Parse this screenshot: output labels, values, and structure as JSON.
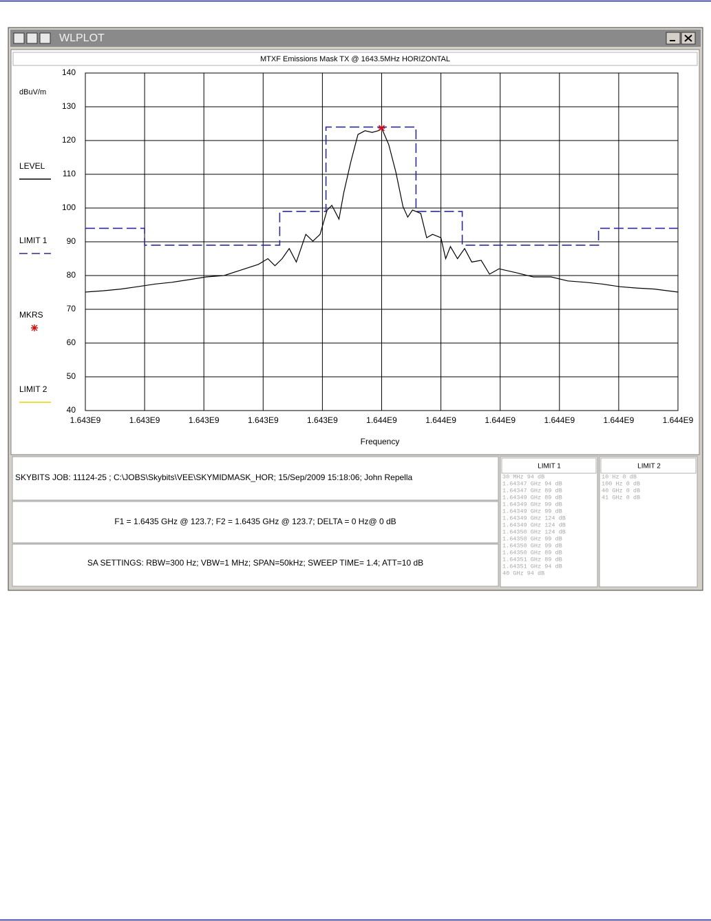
{
  "window": {
    "title": "WLPLOT"
  },
  "chart_data": {
    "type": "line",
    "title": "MTXF Emissions Mask TX @ 1643.5MHz HORIZONTAL",
    "ylabel": "dBuV/m",
    "xlabel": "Frequency",
    "xlim": [
      1643475000,
      1643525000
    ],
    "xticks": [
      {
        "value": 1643475000,
        "label": "1.643E9"
      },
      {
        "value": 1643480000,
        "label": "1.643E9"
      },
      {
        "value": 1643485000,
        "label": "1.643E9"
      },
      {
        "value": 1643490000,
        "label": "1.643E9"
      },
      {
        "value": 1643495000,
        "label": "1.643E9"
      },
      {
        "value": 1643500000,
        "label": "1.644E9"
      },
      {
        "value": 1643505000,
        "label": "1.644E9"
      },
      {
        "value": 1643510000,
        "label": "1.644E9"
      },
      {
        "value": 1643515000,
        "label": "1.644E9"
      },
      {
        "value": 1643520000,
        "label": "1.644E9"
      },
      {
        "value": 1643525000,
        "label": "1.644E9"
      }
    ],
    "ylim": [
      40,
      140
    ],
    "yticks": [
      40,
      50,
      60,
      70,
      80,
      90,
      100,
      110,
      120,
      130,
      140
    ],
    "grid": true,
    "series": [
      {
        "name": "LEVEL",
        "color": "#000000",
        "linestyle": "solid",
        "x": [
          1643475000,
          1643476500,
          1643478000,
          1643479400,
          1643480900,
          1643482300,
          1643483800,
          1643485200,
          1643486700,
          1643488100,
          1643489600,
          1643490400,
          1643491000,
          1643491600,
          1643492200,
          1643492800,
          1643493600,
          1643494200,
          1643494800,
          1643495400,
          1643495800,
          1643496400,
          1643496800,
          1643497400,
          1643498000,
          1643498600,
          1643499200,
          1643499700,
          1643500000,
          1643500600,
          1643501200,
          1643501800,
          1643502200,
          1643502600,
          1643503300,
          1643503800,
          1643504300,
          1643505000,
          1643505400,
          1643505800,
          1643506400,
          1643507000,
          1643507600,
          1643508400,
          1643509100,
          1643509900,
          1643511400,
          1643512800,
          1643514300,
          1643515700,
          1643517200,
          1643518600,
          1643520100,
          1643521500,
          1643523000,
          1643525000
        ],
        "values": [
          75.1,
          75.5,
          76,
          76.7,
          77.5,
          78,
          78.8,
          79.6,
          80,
          81.6,
          83.3,
          85,
          82.9,
          85,
          88,
          84,
          92.2,
          90.2,
          92.2,
          99.4,
          100.8,
          96.7,
          104.5,
          113.7,
          121.8,
          122.9,
          122.4,
          122.9,
          123.7,
          118.8,
          110.6,
          100.4,
          97.3,
          99.4,
          98.4,
          91.2,
          92.2,
          91.2,
          85,
          88.6,
          85,
          88,
          84,
          84.5,
          80.4,
          82,
          80.8,
          79.6,
          79.6,
          78.4,
          78,
          77.5,
          76.7,
          76.3,
          76,
          75.1
        ]
      },
      {
        "name": "LIMIT 1",
        "color": "#2a2a9a",
        "linestyle": "dashed",
        "x": [
          1643475000,
          1643480000,
          1643480000,
          1643491400,
          1643491400,
          1643495300,
          1643495300,
          1643502900,
          1643502900,
          1643506800,
          1643506800,
          1643518300,
          1643518300,
          1643525000
        ],
        "values": [
          94,
          94,
          89,
          89,
          99,
          99,
          124,
          124,
          99,
          99,
          89,
          89,
          94,
          94
        ]
      },
      {
        "name": "MKRS",
        "color": "#cc1111",
        "linestyle": "none",
        "marker": "star",
        "x": [
          1643500000
        ],
        "values": [
          123.7
        ]
      },
      {
        "name": "LIMIT 2",
        "color": "#e8d400",
        "linestyle": "solid",
        "x": [],
        "values": []
      }
    ]
  },
  "info": {
    "job": "SKYBITS  JOB: 11124-25   ; C:\\JOBS\\Skybits\\VEE\\SKYMIDMASK_HOR;    15/Sep/2009 15:18:06; John Repella",
    "markers": "F1 = 1.6435 GHz @ 123.7;   F2 = 1.6435 GHz @ 123.7;   DELTA = 0 Hz@ 0 dB",
    "settings": "SA SETTINGS: RBW=300 Hz; VBW=1 MHz; SPAN=50kHz; SWEEP TIME= 1.4; ATT=10 dB"
  },
  "limit_tables": [
    {
      "title": "LIMIT 1",
      "rows": [
        "30  MHz  94 dB",
        "1.64347  GHz  94 dB",
        "1.64347  GHz  89 dB",
        "1.64349  GHz  89 dB",
        "1.64349  GHz  99 dB",
        "1.64349  GHz  99 dB",
        "1.64349  GHz  124 dB",
        "1.64349  GHz  124 dB",
        "1.64350  GHz  124 dB",
        "1.64350  GHz  99 dB",
        "1.64350  GHz  99 dB",
        "1.64350  GHz  89 dB",
        "1.64351  GHz  89 dB",
        "1.64351  GHz  94 dB",
        "40  GHz  94 dB"
      ]
    },
    {
      "title": "LIMIT 2",
      "rows": [
        "10  Hz  0 dB",
        "100  Hz  0 dB",
        "40  GHz  0 dB",
        "41  GHz  0 dB"
      ]
    }
  ]
}
